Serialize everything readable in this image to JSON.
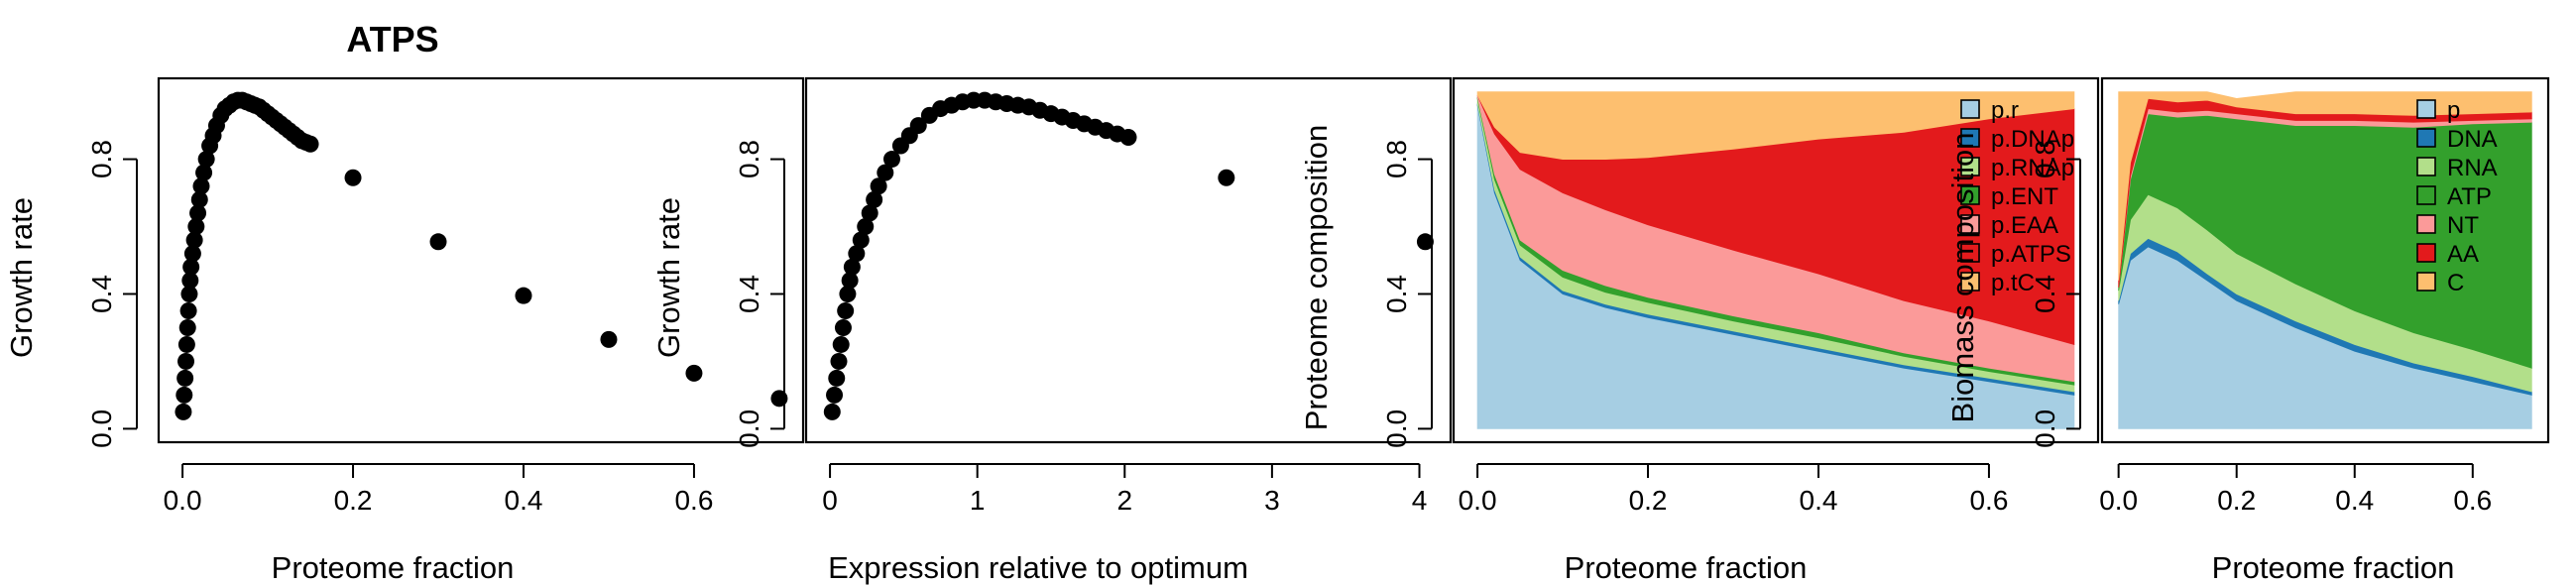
{
  "chart_data": [
    {
      "type": "scatter",
      "title": "ATPS",
      "xlabel": "Proteome fraction",
      "ylabel": "Growth rate",
      "xlim": [
        0,
        0.7
      ],
      "ylim": [
        0,
        1.0
      ],
      "xticks": [
        0.0,
        0.2,
        0.4,
        0.6
      ],
      "xtick_labels": [
        "0.0",
        "0.2",
        "0.4",
        "0.6"
      ],
      "yticks": [
        0.0,
        0.4,
        0.8
      ],
      "ytick_labels": [
        "0.0",
        "0.4",
        "0.8"
      ],
      "points": [
        [
          0.001,
          0.05
        ],
        [
          0.002,
          0.1
        ],
        [
          0.003,
          0.15
        ],
        [
          0.004,
          0.2
        ],
        [
          0.005,
          0.25
        ],
        [
          0.006,
          0.3
        ],
        [
          0.007,
          0.35
        ],
        [
          0.008,
          0.4
        ],
        [
          0.009,
          0.44
        ],
        [
          0.01,
          0.48
        ],
        [
          0.012,
          0.52
        ],
        [
          0.014,
          0.56
        ],
        [
          0.016,
          0.6
        ],
        [
          0.018,
          0.64
        ],
        [
          0.02,
          0.68
        ],
        [
          0.022,
          0.72
        ],
        [
          0.025,
          0.76
        ],
        [
          0.028,
          0.8
        ],
        [
          0.032,
          0.84
        ],
        [
          0.036,
          0.87
        ],
        [
          0.04,
          0.9
        ],
        [
          0.045,
          0.93
        ],
        [
          0.05,
          0.95
        ],
        [
          0.055,
          0.96
        ],
        [
          0.06,
          0.97
        ],
        [
          0.065,
          0.975
        ],
        [
          0.07,
          0.975
        ],
        [
          0.075,
          0.97
        ],
        [
          0.08,
          0.965
        ],
        [
          0.085,
          0.96
        ],
        [
          0.09,
          0.955
        ],
        [
          0.095,
          0.945
        ],
        [
          0.1,
          0.935
        ],
        [
          0.105,
          0.925
        ],
        [
          0.11,
          0.915
        ],
        [
          0.115,
          0.905
        ],
        [
          0.12,
          0.895
        ],
        [
          0.125,
          0.885
        ],
        [
          0.13,
          0.875
        ],
        [
          0.135,
          0.865
        ],
        [
          0.14,
          0.855
        ],
        [
          0.145,
          0.85
        ],
        [
          0.15,
          0.845
        ],
        [
          0.2,
          0.745
        ],
        [
          0.3,
          0.555
        ],
        [
          0.4,
          0.395
        ],
        [
          0.5,
          0.265
        ],
        [
          0.6,
          0.165
        ],
        [
          0.7,
          0.09
        ]
      ]
    },
    {
      "type": "scatter",
      "title": "",
      "xlabel": "Expression relative to optimum",
      "ylabel": "Growth rate",
      "xlim": [
        0,
        4.05
      ],
      "ylim": [
        0,
        1.0
      ],
      "xticks": [
        0,
        1,
        2,
        3,
        4
      ],
      "xtick_labels": [
        "0",
        "1",
        "2",
        "3",
        "4"
      ],
      "yticks": [
        0.0,
        0.4,
        0.8
      ],
      "ytick_labels": [
        "0.0",
        "0.4",
        "0.8"
      ],
      "points": [
        [
          0.015,
          0.05
        ],
        [
          0.03,
          0.1
        ],
        [
          0.045,
          0.15
        ],
        [
          0.06,
          0.2
        ],
        [
          0.075,
          0.25
        ],
        [
          0.09,
          0.3
        ],
        [
          0.105,
          0.35
        ],
        [
          0.12,
          0.4
        ],
        [
          0.135,
          0.44
        ],
        [
          0.15,
          0.48
        ],
        [
          0.18,
          0.52
        ],
        [
          0.21,
          0.56
        ],
        [
          0.24,
          0.6
        ],
        [
          0.27,
          0.64
        ],
        [
          0.3,
          0.68
        ],
        [
          0.33,
          0.72
        ],
        [
          0.375,
          0.76
        ],
        [
          0.42,
          0.8
        ],
        [
          0.48,
          0.84
        ],
        [
          0.54,
          0.87
        ],
        [
          0.6,
          0.9
        ],
        [
          0.675,
          0.93
        ],
        [
          0.75,
          0.95
        ],
        [
          0.825,
          0.96
        ],
        [
          0.9,
          0.97
        ],
        [
          0.975,
          0.975
        ],
        [
          1.05,
          0.975
        ],
        [
          1.125,
          0.97
        ],
        [
          1.2,
          0.965
        ],
        [
          1.275,
          0.96
        ],
        [
          1.35,
          0.955
        ],
        [
          1.425,
          0.945
        ],
        [
          1.5,
          0.935
        ],
        [
          1.575,
          0.925
        ],
        [
          1.65,
          0.915
        ],
        [
          1.725,
          0.905
        ],
        [
          1.8,
          0.895
        ],
        [
          1.875,
          0.885
        ],
        [
          1.95,
          0.875
        ],
        [
          2.025,
          0.865
        ],
        [
          2.69,
          0.745
        ],
        [
          4.04,
          0.555
        ]
      ]
    },
    {
      "type": "area",
      "title": "",
      "xlabel": "Proteome fraction",
      "ylabel": "Proteome composition",
      "xlim": [
        0,
        0.7
      ],
      "ylim": [
        0,
        1.0
      ],
      "xticks": [
        0.0,
        0.2,
        0.4,
        0.6
      ],
      "xtick_labels": [
        "0.0",
        "0.2",
        "0.4",
        "0.6"
      ],
      "yticks": [
        0.0,
        0.4,
        0.8
      ],
      "ytick_labels": [
        "0.0",
        "0.4",
        "0.8"
      ],
      "legend_position": "top-right",
      "x": [
        0.0,
        0.02,
        0.05,
        0.1,
        0.15,
        0.2,
        0.3,
        0.4,
        0.5,
        0.6,
        0.7
      ],
      "series": [
        {
          "name": "p.r",
          "color": "#A6CEE3",
          "values": [
            0.96,
            0.7,
            0.5,
            0.4,
            0.36,
            0.33,
            0.28,
            0.23,
            0.18,
            0.14,
            0.1
          ]
        },
        {
          "name": "p.DNAp",
          "color": "#1F78B4",
          "values": [
            0.005,
            0.01,
            0.01,
            0.01,
            0.01,
            0.01,
            0.01,
            0.01,
            0.01,
            0.01,
            0.01
          ]
        },
        {
          "name": "p.RNAp",
          "color": "#B2DF8A",
          "values": [
            0.015,
            0.03,
            0.035,
            0.04,
            0.035,
            0.035,
            0.03,
            0.03,
            0.025,
            0.02,
            0.02
          ]
        },
        {
          "name": "p.ENT",
          "color": "#33A02C",
          "values": [
            0.005,
            0.015,
            0.015,
            0.02,
            0.02,
            0.015,
            0.015,
            0.015,
            0.01,
            0.01,
            0.01
          ]
        },
        {
          "name": "p.EAA",
          "color": "#FB9A99",
          "values": [
            0.005,
            0.12,
            0.21,
            0.23,
            0.225,
            0.215,
            0.195,
            0.175,
            0.155,
            0.14,
            0.11
          ]
        },
        {
          "name": "p.ATPS",
          "color": "#E31A1C",
          "values": [
            0.0,
            0.02,
            0.05,
            0.1,
            0.15,
            0.2,
            0.3,
            0.4,
            0.5,
            0.6,
            0.7
          ]
        },
        {
          "name": "p.tC",
          "color": "#FDBF6F",
          "values": [
            0.01,
            0.105,
            0.18,
            0.2,
            0.2,
            0.195,
            0.17,
            0.14,
            0.12,
            0.08,
            0.05
          ]
        }
      ]
    },
    {
      "type": "area",
      "title": "",
      "xlabel": "Proteome fraction",
      "ylabel": "Biomass composition",
      "xlim": [
        0,
        0.7
      ],
      "ylim": [
        0,
        1.0
      ],
      "xticks": [
        0.0,
        0.2,
        0.4,
        0.6
      ],
      "xtick_labels": [
        "0.0",
        "0.2",
        "0.4",
        "0.6"
      ],
      "yticks": [
        0.0,
        0.4,
        0.8
      ],
      "ytick_labels": [
        "0.0",
        "0.4",
        "0.8"
      ],
      "legend_position": "top-right",
      "x": [
        0.0,
        0.02,
        0.05,
        0.1,
        0.15,
        0.2,
        0.3,
        0.4,
        0.5,
        0.6,
        0.7
      ],
      "series": [
        {
          "name": "p",
          "color": "#A6CEE3",
          "values": [
            0.37,
            0.5,
            0.54,
            0.5,
            0.44,
            0.38,
            0.3,
            0.23,
            0.18,
            0.14,
            0.1
          ]
        },
        {
          "name": "DNA",
          "color": "#1F78B4",
          "values": [
            0.01,
            0.02,
            0.025,
            0.025,
            0.02,
            0.02,
            0.02,
            0.02,
            0.015,
            0.015,
            0.01
          ]
        },
        {
          "name": "RNA",
          "color": "#B2DF8A",
          "values": [
            0.03,
            0.1,
            0.13,
            0.13,
            0.13,
            0.12,
            0.11,
            0.1,
            0.09,
            0.08,
            0.07
          ]
        },
        {
          "name": "ATP",
          "color": "#33A02C",
          "values": [
            0.01,
            0.12,
            0.24,
            0.27,
            0.34,
            0.4,
            0.47,
            0.55,
            0.61,
            0.67,
            0.73
          ]
        },
        {
          "name": "NT",
          "color": "#FB9A99",
          "values": [
            0.0,
            0.01,
            0.015,
            0.015,
            0.015,
            0.015,
            0.015,
            0.015,
            0.015,
            0.01,
            0.01
          ]
        },
        {
          "name": "AA",
          "color": "#E31A1C",
          "values": [
            0.02,
            0.04,
            0.03,
            0.03,
            0.03,
            0.02,
            0.02,
            0.02,
            0.02,
            0.02,
            0.02
          ]
        },
        {
          "name": "C",
          "color": "#FDBF6F",
          "values": [
            0.56,
            0.21,
            0.02,
            0.03,
            0.025,
            0.025,
            0.065,
            0.065,
            0.07,
            0.065,
            0.06
          ]
        }
      ]
    }
  ]
}
